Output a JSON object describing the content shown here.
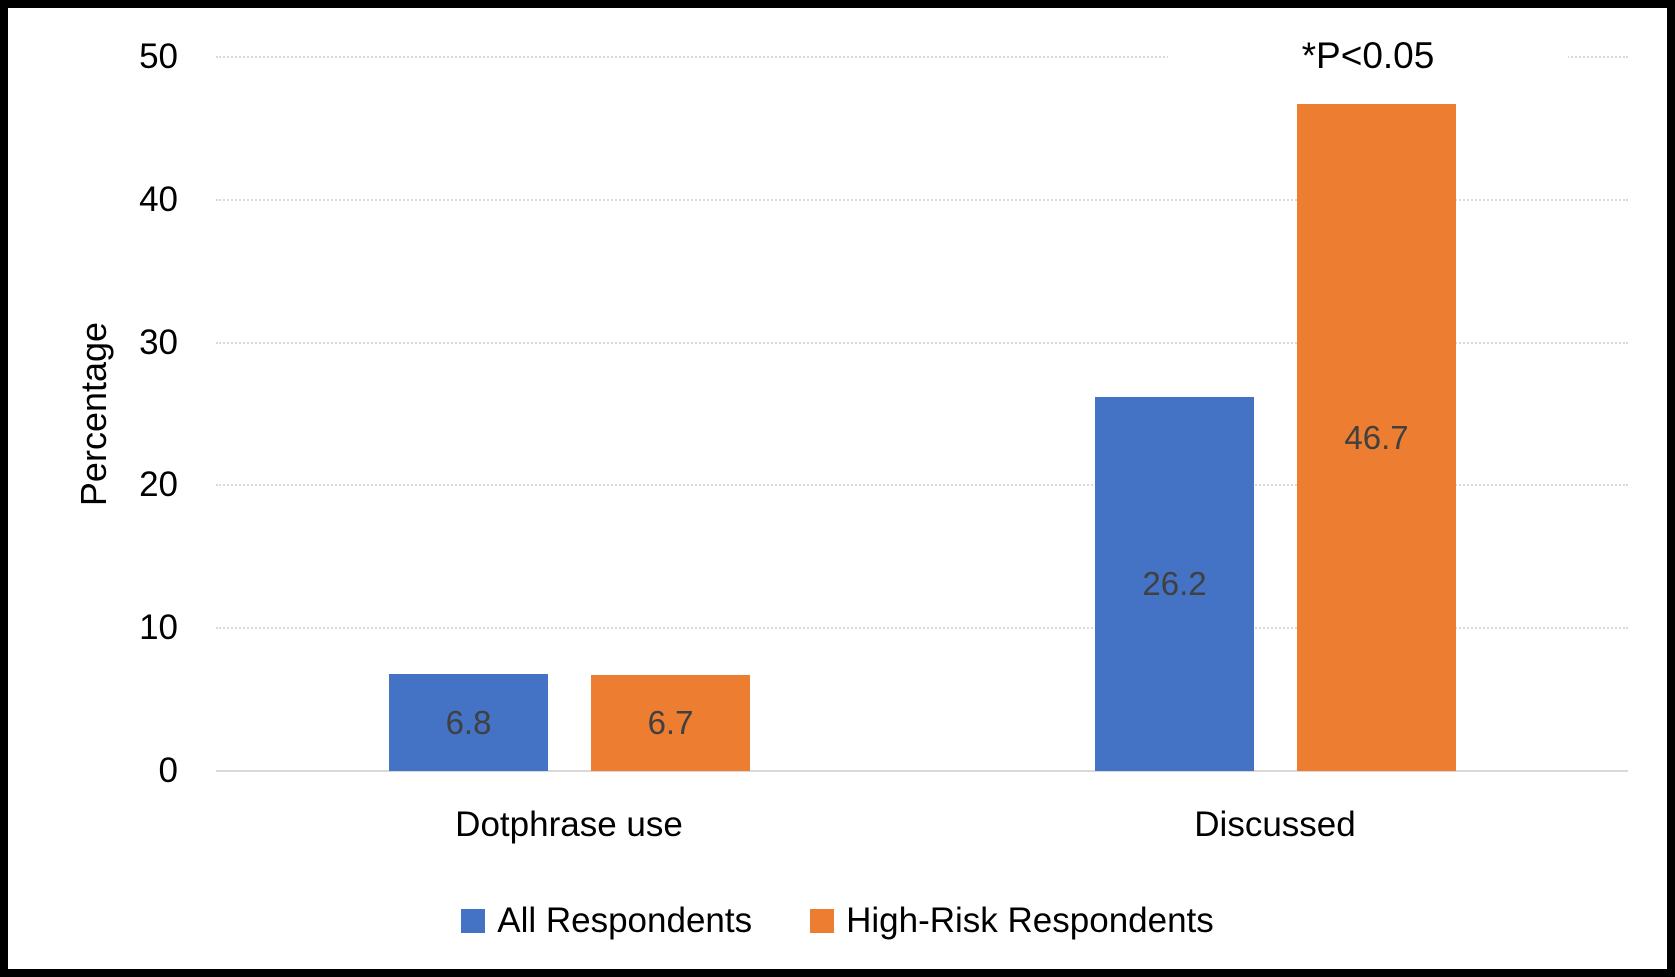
{
  "chart_data": {
    "type": "bar",
    "title": "",
    "ylabel": "Percentage",
    "xlabel": "",
    "categories": [
      "Dotphrase use",
      "Discussed"
    ],
    "series": [
      {
        "name": "All Respondents",
        "color": "#4472C4",
        "values": [
          6.8,
          26.2
        ]
      },
      {
        "name": "High-Risk Respondents",
        "color": "#ED7D31",
        "values": [
          6.7,
          46.7
        ]
      }
    ],
    "ylim": [
      0,
      50
    ],
    "yticks": [
      0,
      10,
      20,
      30,
      40,
      50
    ],
    "grid": true,
    "gridline_color": "#D9D9D9",
    "legend_position": "bottom",
    "annotation": "*P<0.05",
    "data_labels": true,
    "data_label_color": "#404040",
    "axis_text_color": "#000000",
    "background_color": "#FFFFFF",
    "border_color": "#000000"
  }
}
